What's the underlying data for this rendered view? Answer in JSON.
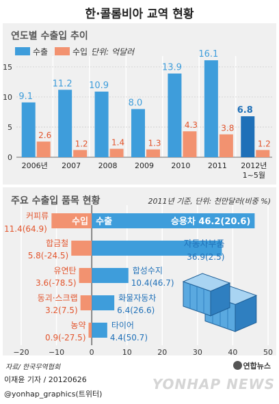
{
  "header": {
    "title": "한·콜롬비아 교역 현황"
  },
  "colors": {
    "export": "#3e9ddb",
    "export_dark": "#1f70b8",
    "import": "#f29270",
    "import_text": "#e2542c",
    "grid": "#ffffff",
    "panel": "#f0f0f0"
  },
  "chart1": {
    "subtitle": "연도별 수출입 추이",
    "legend_export": "수출",
    "legend_import": "수입",
    "unit": "단위: 억달러"
  },
  "chart2": {
    "subtitle": "주요 수출입 품목 현황",
    "note": "2011년 기준, 단위: 천만달러(비중 %)",
    "import_header": "수입",
    "export_header": "수출"
  },
  "footer": {
    "source": "자료/ 한국무역협회",
    "credit": "이재윤 기자 / 20120626",
    "handle": "@yonhap_graphics(트위터)",
    "logo": "연합뉴스",
    "watermark": "YONHAP NEWS"
  },
  "chart_data": [
    {
      "type": "bar",
      "title": "연도별 수출입 추이",
      "categories": [
        "2006년",
        "2007",
        "2008",
        "2009",
        "2010",
        "2011",
        "2012년 1~5월"
      ],
      "series": [
        {
          "name": "수출",
          "values": [
            9.1,
            11.2,
            10.9,
            8.0,
            13.9,
            16.1,
            6.8
          ]
        },
        {
          "name": "수입",
          "values": [
            2.6,
            1.2,
            1.4,
            1.3,
            4.3,
            3.8,
            1.2
          ]
        }
      ],
      "value_labels": {
        "수출": [
          "9.1",
          "11.2",
          "10.9",
          "8.0",
          "13.9",
          "16.1",
          "6.8"
        ],
        "수입": [
          "2.6",
          "1.2",
          "1.4",
          "1.3",
          "4.3",
          "3.8",
          "1.2"
        ]
      },
      "ylabel": "단위: 억달러",
      "ylim": [
        0,
        16.8
      ],
      "yticks": [
        0,
        5,
        10,
        15
      ],
      "grid": true,
      "legend": "top-left"
    },
    {
      "type": "bar",
      "orientation": "horizontal",
      "title": "주요 수출입 품목 현황",
      "note": "2011년 기준, 단위: 천만달러(비중 %)",
      "series": [
        {
          "name": "수입",
          "items": [
            {
              "label": "커피류",
              "value": 11.4,
              "share": "(64.9)"
            },
            {
              "label": "합금철",
              "value": 5.8,
              "share": "(-24.5)"
            },
            {
              "label": "유연탄",
              "value": 3.6,
              "share": "(-78.5)"
            },
            {
              "label": "동괴·스크랩",
              "value": 3.2,
              "share": "(7.5)"
            },
            {
              "label": "농약",
              "value": 0.9,
              "share": "(-27.5)"
            }
          ]
        },
        {
          "name": "수출",
          "items": [
            {
              "label": "승용차",
              "value": 46.2,
              "share": "(20.6)"
            },
            {
              "label": "자동차부품",
              "value": 36.9,
              "share": "(2.5)"
            },
            {
              "label": "합성수지",
              "value": 10.4,
              "share": "(46.7)"
            },
            {
              "label": "화물자동차",
              "value": 6.4,
              "share": "(26.6)"
            },
            {
              "label": "타이어",
              "value": 4.4,
              "share": "(50.7)"
            }
          ]
        }
      ],
      "xlim": [
        -20,
        50
      ],
      "xticks": [
        -20,
        -10,
        0,
        10,
        20,
        30,
        40,
        50
      ],
      "grid": true
    }
  ]
}
